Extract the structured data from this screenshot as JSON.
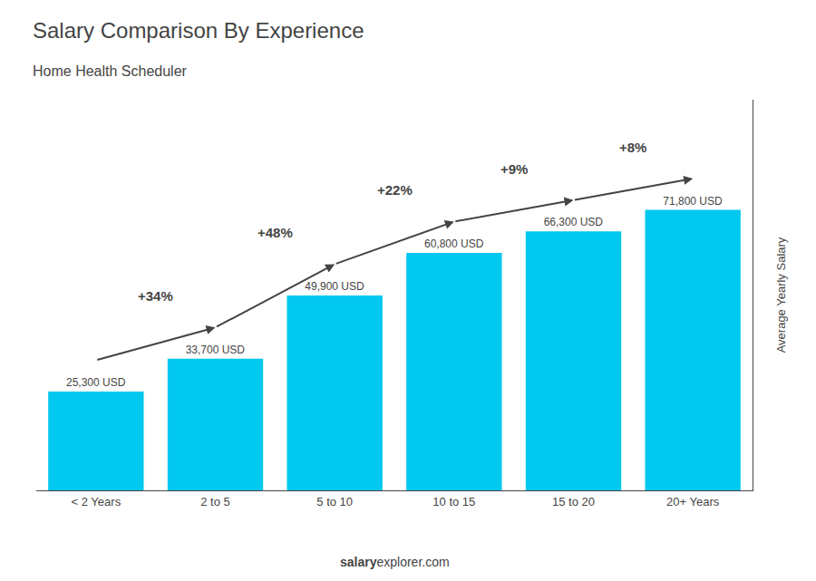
{
  "chart_data": {
    "type": "bar",
    "title": "Salary Comparison By Experience",
    "subtitle": "Home Health Scheduler",
    "categories": [
      "< 2 Years",
      "2 to 5",
      "5 to 10",
      "10 to 15",
      "15 to 20",
      "20+ Years"
    ],
    "values": [
      25300,
      33700,
      49900,
      60800,
      66300,
      71800
    ],
    "value_labels": [
      "25,300 USD",
      "33,700 USD",
      "49,900 USD",
      "60,800 USD",
      "66,300 USD",
      "71,800 USD"
    ],
    "data_labels": true,
    "color": "#00c8ee",
    "ylabel": "Average Yearly Salary",
    "ylim": [
      0,
      100000
    ],
    "tick_labels": "x",
    "grid": false,
    "annotations": [
      {
        "text": "+34%",
        "from": "< 2 Years",
        "to": "2 to 5"
      },
      {
        "text": "+48%",
        "from": "2 to 5",
        "to": "5 to 10"
      },
      {
        "text": "+22%",
        "from": "5 to 10",
        "to": "10 to 15"
      },
      {
        "text": "+9%",
        "from": "10 to 15",
        "to": "15 to 20"
      },
      {
        "text": "+8%",
        "from": "15 to 20",
        "to": "20+ Years"
      }
    ],
    "footer": {
      "bold": "salary",
      "normal": "explorer.com"
    }
  }
}
